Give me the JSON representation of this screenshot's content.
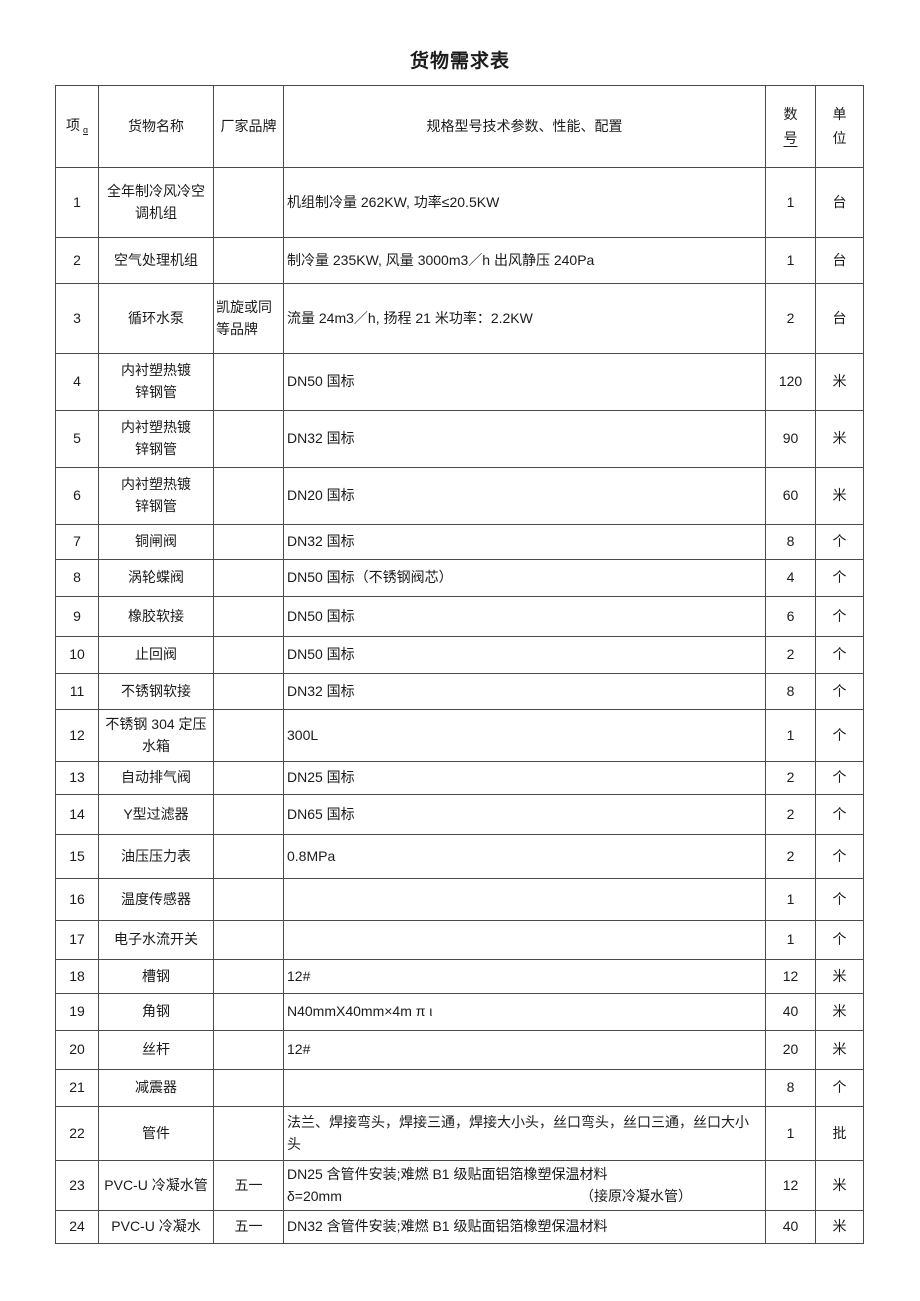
{
  "title": "货物需求表",
  "table": {
    "header": {
      "item": "项",
      "item_mark": "ɑ",
      "goods_name": "货物名称",
      "brand": "厂家品牌",
      "spec": "规格型号技术参数、性能、配置",
      "qty_top": "数",
      "qty_bottom": "号",
      "unit_top": "单",
      "unit_bottom": "位"
    },
    "rows": [
      {
        "no": "1",
        "name": "全年制冷风冷空\n调机组",
        "brand": "",
        "spec": "机组制冷量 262KW, 功率≤20.5KW",
        "qty": "1",
        "unit": "台"
      },
      {
        "no": "2",
        "name": "空气处理机组",
        "brand": "",
        "spec": "制冷量 235KW, 风量 3000m3／h 出风静压 240Pa",
        "qty": "1",
        "unit": "台"
      },
      {
        "no": "3",
        "name": "循环水泵",
        "brand": "凯旋或同\n等品牌",
        "spec": "流量 24m3／h, 扬程 21 米功率：2.2KW",
        "qty": "2",
        "unit": "台"
      },
      {
        "no": "4",
        "name": "内衬塑热镀\n锌钢管",
        "brand": "",
        "spec": "DN50 国标",
        "qty": "120",
        "unit": "米"
      },
      {
        "no": "5",
        "name": "内衬塑热镀\n锌钢管",
        "brand": "",
        "spec": "DN32 国标",
        "qty": "90",
        "unit": "米"
      },
      {
        "no": "6",
        "name": "内衬塑热镀\n锌钢管",
        "brand": "",
        "spec": "DN20 国标",
        "qty": "60",
        "unit": "米"
      },
      {
        "no": "7",
        "name": "铜闸阀",
        "brand": "",
        "spec": "DN32 国标",
        "qty": "8",
        "unit": "个"
      },
      {
        "no": "8",
        "name": "涡轮蝶阀",
        "brand": "",
        "spec": "DN50 国标（不锈钢阀芯）",
        "qty": "4",
        "unit": "个"
      },
      {
        "no": "9",
        "name": "橡胶软接",
        "brand": "",
        "spec": "DN50 国标",
        "qty": "6",
        "unit": "个"
      },
      {
        "no": "10",
        "name": "止回阀",
        "brand": "",
        "spec": "DN50 国标",
        "qty": "2",
        "unit": "个"
      },
      {
        "no": "11",
        "name": "不锈钢软接",
        "brand": "",
        "spec": "DN32 国标",
        "qty": "8",
        "unit": "个"
      },
      {
        "no": "12",
        "name": "不锈钢 304 定压\n水箱",
        "brand": "",
        "spec": "300L",
        "qty": "1",
        "unit": "个"
      },
      {
        "no": "13",
        "name": "自动排气阀",
        "brand": "",
        "spec": "DN25 国标",
        "qty": "2",
        "unit": "个"
      },
      {
        "no": "14",
        "name": "Y型过滤器",
        "brand": "",
        "spec": "DN65 国标",
        "qty": "2",
        "unit": "个"
      },
      {
        "no": "15",
        "name": "油压压力表",
        "brand": "",
        "spec": "0.8MPa",
        "qty": "2",
        "unit": "个"
      },
      {
        "no": "16",
        "name": "温度传感器",
        "brand": "",
        "spec": "",
        "qty": "1",
        "unit": "个"
      },
      {
        "no": "17",
        "name": "电子水流开关",
        "brand": "",
        "spec": "",
        "qty": "1",
        "unit": "个"
      },
      {
        "no": "18",
        "name": "槽钢",
        "brand": "",
        "spec": "12#",
        "qty": "12",
        "unit": "米"
      },
      {
        "no": "19",
        "name": "角钢",
        "brand": "",
        "spec": "N40mmX40mm×4m π ι",
        "qty": "40",
        "unit": "米"
      },
      {
        "no": "20",
        "name": "丝杆",
        "brand": "",
        "spec": "12#",
        "qty": "20",
        "unit": "米"
      },
      {
        "no": "21",
        "name": "减震器",
        "brand": "",
        "spec": "",
        "qty": "8",
        "unit": "个"
      },
      {
        "no": "22",
        "name": "管件",
        "brand": "",
        "spec": "法兰、焊接弯头，焊接三通，焊接大小头，丝口弯头，丝口三通，丝口大小头",
        "qty": "1",
        "unit": "批"
      },
      {
        "no": "23",
        "name": "PVC-U 冷凝水管",
        "brand": "五一",
        "spec": "DN25 含管件安装;难燃 B1 级贴面铝箔橡塑保温材料",
        "spec2_left": "δ=20mm",
        "spec2_right": "（接原冷凝水管）",
        "qty": "12",
        "unit": "米"
      },
      {
        "no": "24",
        "name": "PVC-U 冷凝水",
        "brand": "五一",
        "spec": "DN32 含管件安装;难燃 B1 级贴面铝箔橡塑保温材料",
        "qty": "40",
        "unit": "米"
      }
    ]
  },
  "colors": {
    "border": "#4a4a4a",
    "text": "#1b1b1b",
    "background": "#ffffff"
  }
}
